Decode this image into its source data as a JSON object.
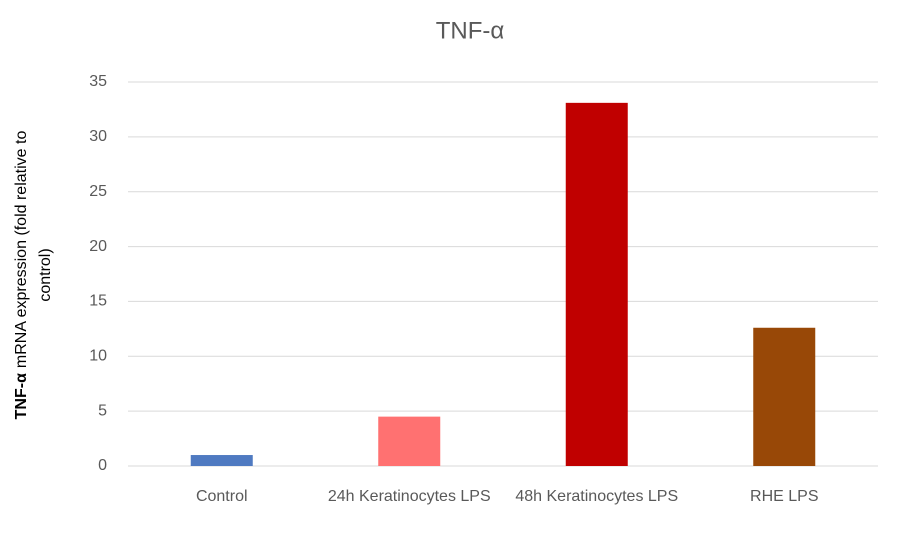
{
  "chart_data": {
    "type": "bar",
    "title": "TNF-α",
    "y_label": [
      "TNF-α",
      "mRNA expression (fold relative to",
      "control)"
    ],
    "categories": [
      "Control",
      "24h Keratinocytes LPS",
      "48h Keratinocytes LPS",
      "RHE LPS"
    ],
    "values": [
      1.0,
      4.5,
      33.1,
      12.6
    ],
    "colors": [
      "#4f7ac1",
      "#ff7171",
      "#c00000",
      "#984807"
    ],
    "ylim": [
      0,
      35
    ],
    "yticks": [
      0,
      5,
      10,
      15,
      20,
      25,
      30,
      35
    ],
    "grid": true
  }
}
